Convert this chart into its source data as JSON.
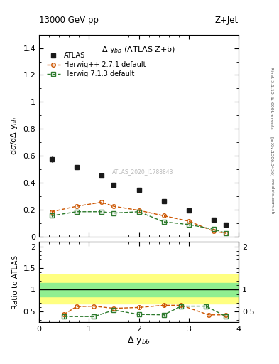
{
  "title_top": "13000 GeV pp",
  "title_right": "Z+Jet",
  "annotation": "$\\Delta$ y$_{bb}$ (ATLAS Z+b)",
  "watermark": "ATLAS_2020_I1788843",
  "right_label1": "Rivet 3.1.10, ≥ 600k events",
  "right_label2": "[arXiv:1306.3436]",
  "right_label3": "mcplots.cern.ch",
  "atlas_x": [
    0.25,
    0.75,
    1.25,
    1.5,
    2.0,
    2.5,
    3.0,
    3.5,
    3.75
  ],
  "atlas_y": [
    0.575,
    0.515,
    0.455,
    0.385,
    0.345,
    0.265,
    0.195,
    0.125,
    0.09
  ],
  "atlas_yerr": [
    0.02,
    0.02,
    0.02,
    0.015,
    0.015,
    0.015,
    0.01,
    0.01,
    0.01
  ],
  "hw271_x": [
    0.25,
    0.75,
    1.25,
    1.5,
    2.0,
    2.5,
    3.0,
    3.5,
    3.75
  ],
  "hw271_y": [
    0.185,
    0.225,
    0.255,
    0.225,
    0.195,
    0.155,
    0.115,
    0.04,
    0.025
  ],
  "hw271_yerr": [
    0.01,
    0.01,
    0.01,
    0.01,
    0.01,
    0.008,
    0.007,
    0.005,
    0.005
  ],
  "hw713_x": [
    0.25,
    0.75,
    1.25,
    1.5,
    2.0,
    2.5,
    3.0,
    3.5,
    3.75
  ],
  "hw713_y": [
    0.155,
    0.185,
    0.185,
    0.175,
    0.185,
    0.11,
    0.09,
    0.055,
    0.025
  ],
  "hw713_yerr": [
    0.01,
    0.008,
    0.008,
    0.008,
    0.008,
    0.007,
    0.006,
    0.005,
    0.004
  ],
  "ratio_hw271_x": [
    0.5,
    0.75,
    1.1,
    1.5,
    2.0,
    2.5,
    2.85,
    3.4,
    3.75
  ],
  "ratio_hw271_y": [
    0.43,
    0.61,
    0.62,
    0.57,
    0.59,
    0.64,
    0.64,
    0.42,
    0.42
  ],
  "ratio_hw271_yerr": [
    0.04,
    0.04,
    0.04,
    0.04,
    0.04,
    0.04,
    0.04,
    0.05,
    0.05
  ],
  "ratio_hw713_x": [
    0.5,
    1.1,
    1.5,
    2.0,
    2.5,
    2.85,
    3.35,
    3.75
  ],
  "ratio_hw713_y": [
    0.38,
    0.38,
    0.53,
    0.43,
    0.42,
    0.62,
    0.62,
    0.38
  ],
  "ratio_hw713_yerr": [
    0.04,
    0.04,
    0.04,
    0.04,
    0.04,
    0.04,
    0.04,
    0.05
  ],
  "band_green_lo": 0.85,
  "band_green_hi": 1.15,
  "band_yellow_lo": 0.68,
  "band_yellow_hi": 1.35,
  "color_atlas": "#1a1a1a",
  "color_hw271": "#cc5500",
  "color_hw713": "#2d7a2d",
  "color_band_green": "#90ee90",
  "color_band_yellow": "#ffff80",
  "main_ylabel": "d$\\sigma$/d$\\Delta$ y$_{bb}$",
  "main_ylim": [
    0,
    1.5
  ],
  "ratio_ylabel": "Ratio to ATLAS",
  "ratio_ylim": [
    0.25,
    2.1
  ],
  "xlabel": "$\\Delta$ y$_{bb}$",
  "xlim": [
    0,
    4.0
  ]
}
